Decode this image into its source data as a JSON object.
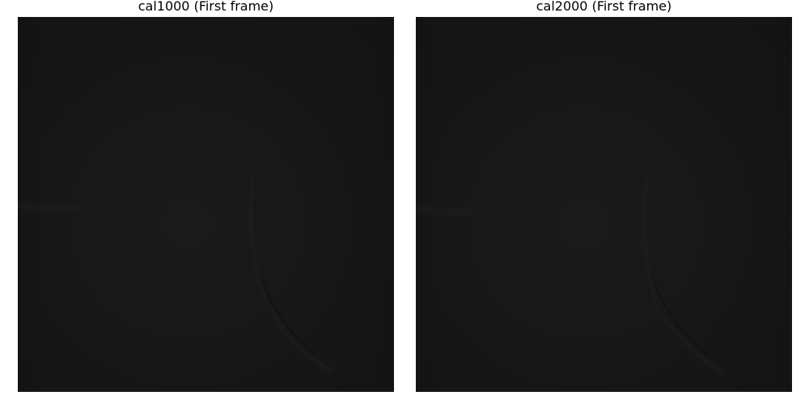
{
  "panels": [
    {
      "title": "cal1000 (First frame)",
      "content": "dark-calibration-frame"
    },
    {
      "title": "cal2000 (First frame)",
      "content": "dark-calibration-frame"
    }
  ],
  "colors": {
    "background": "#ffffff",
    "frame_base": "#161616",
    "frame_highlight": "#1b1b1b",
    "frame_shadow": "#121212",
    "title_text": "#000000"
  }
}
